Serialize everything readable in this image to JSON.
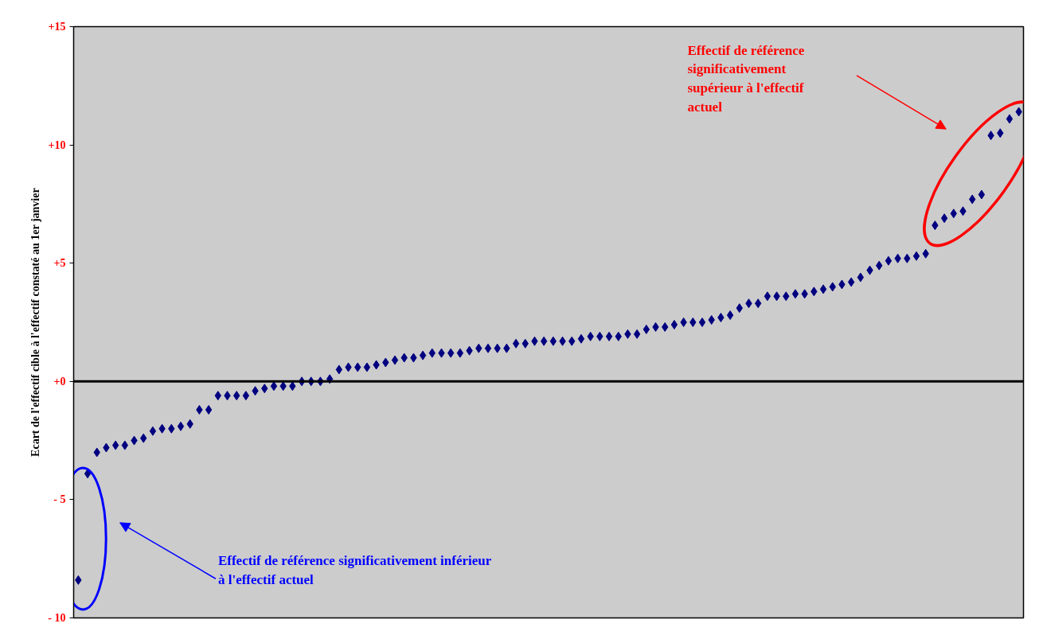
{
  "chart_data": {
    "type": "scatter",
    "ylabel": "Ecart de l'effectif cible à l'effectif constaté au 1er janvier",
    "categories": [
      null,
      null,
      null,
      null,
      null,
      null,
      null,
      null,
      null,
      null,
      null,
      null,
      null,
      null,
      null,
      null,
      null,
      null,
      null,
      null,
      null,
      null,
      null,
      null,
      null,
      null,
      null,
      null,
      null,
      null,
      null,
      null,
      null,
      null,
      null,
      null,
      null,
      null,
      null,
      null,
      null,
      null,
      null,
      null,
      null,
      null,
      null,
      null,
      null,
      null,
      null,
      null,
      null,
      null,
      null,
      null,
      null,
      null,
      null,
      null,
      null,
      null,
      null,
      null,
      null,
      null,
      null,
      null,
      null,
      null,
      null,
      null,
      null,
      null,
      null,
      null,
      null,
      null,
      null,
      null,
      null,
      null,
      null,
      null,
      null,
      null,
      null,
      null,
      null,
      null,
      null,
      null,
      null,
      null,
      null,
      null,
      null,
      null,
      null,
      null,
      null,
      null
    ],
    "series": [
      {
        "color": "#000080",
        "values": [
          -8.4,
          -3.9,
          -3.0,
          -2.8,
          -2.7,
          -2.7,
          -2.5,
          -2.4,
          -2.1,
          -2.0,
          -2.0,
          -1.9,
          -1.8,
          -1.2,
          -1.2,
          -0.6,
          -0.6,
          -0.6,
          -0.6,
          -0.4,
          -0.3,
          -0.2,
          -0.2,
          -0.2,
          0.0,
          0.0,
          0.0,
          0.1,
          0.5,
          0.6,
          0.6,
          0.6,
          0.7,
          0.8,
          0.9,
          1.0,
          1.0,
          1.1,
          1.2,
          1.2,
          1.2,
          1.2,
          1.3,
          1.4,
          1.4,
          1.4,
          1.4,
          1.6,
          1.6,
          1.7,
          1.7,
          1.7,
          1.7,
          1.7,
          1.8,
          1.9,
          1.9,
          1.9,
          1.9,
          2.0,
          2.0,
          2.2,
          2.3,
          2.3,
          2.4,
          2.5,
          2.5,
          2.5,
          2.6,
          2.7,
          2.8,
          3.1,
          3.3,
          3.3,
          3.6,
          3.6,
          3.6,
          3.7,
          3.7,
          3.8,
          3.9,
          4.0,
          4.1,
          4.2,
          4.4,
          4.7,
          4.9,
          5.1,
          5.2,
          5.2,
          5.3,
          5.4,
          6.6,
          6.9,
          7.1,
          7.2,
          7.7,
          7.9,
          10.4,
          10.5,
          11.1,
          11.4
        ]
      }
    ],
    "marker": "diamond",
    "ylim": [
      -10,
      15
    ],
    "yticks": [
      {
        "value": 15,
        "label": "+15"
      },
      {
        "value": 10,
        "label": "+10"
      },
      {
        "value": 5,
        "label": "+5"
      },
      {
        "value": 0,
        "label": "+0"
      },
      {
        "value": -5,
        "label": "- 5"
      },
      {
        "value": -10,
        "label": "- 10"
      }
    ],
    "tick_labels": "y",
    "grid": false,
    "ref_lines": [
      {
        "axis": "y",
        "value": 0,
        "color": "#000000"
      }
    ],
    "annotations": [
      "Effectif de référence significativement supérieur à l'effectif actuel",
      "Effectif de référence significativement inférieur à l'effectif actuel"
    ]
  }
}
